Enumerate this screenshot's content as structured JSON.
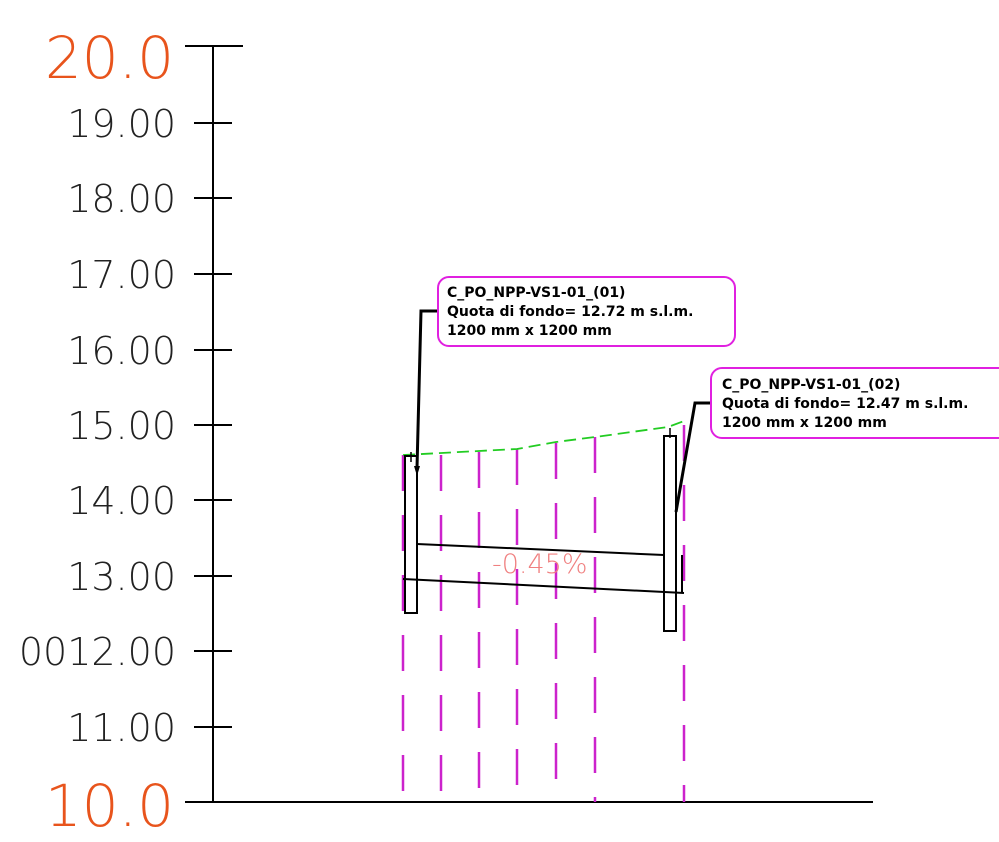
{
  "axis": {
    "top_label": "20.0",
    "bottom_label": "10.0",
    "tick_labels": [
      "19.00",
      "18.00",
      "17.00",
      "16.00",
      "15.00",
      "14.00",
      "13.00",
      "0012.00",
      "11.00"
    ],
    "major_color": "#e8541c"
  },
  "manholes": [
    {
      "id_line": "C_PO_NPP-VS1-01_(01)",
      "bottom_line": "Quota di fondo= 12.72 m s.l.m.",
      "size_line": "1200 mm x 1200 mm"
    },
    {
      "id_line": "C_PO_NPP-VS1-01_(02)",
      "bottom_line": "Quota di fondo= 12.47 m s.l.m.",
      "size_line": "1200 mm x 1200 mm"
    }
  ],
  "pipe": {
    "slope_label": "-0.45%"
  },
  "colors": {
    "callout_border": "#e020e0",
    "ground_line": "#22cc22",
    "section_lines": "#cc22cc",
    "slope_text": "#f08080"
  }
}
